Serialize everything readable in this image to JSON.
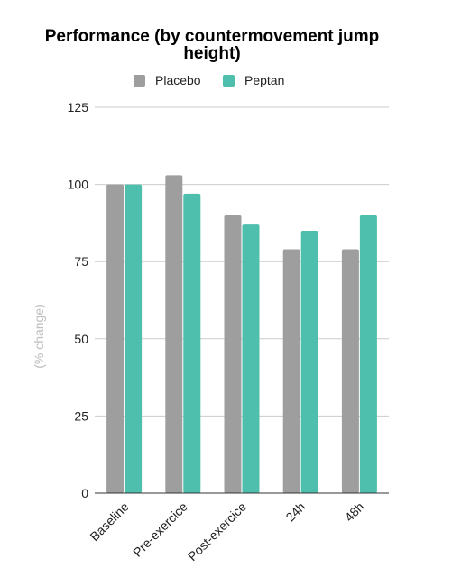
{
  "chart_data": {
    "type": "bar",
    "title": "Performance (by countermovement jump height)",
    "xlabel": "",
    "ylabel": "(% change)",
    "categories": [
      "Baseline",
      "Pre-exercice",
      "Post-exercice",
      "24h",
      "48h"
    ],
    "series": [
      {
        "name": "Placebo",
        "color": "#9e9e9e",
        "values": [
          100,
          103,
          90,
          79,
          79
        ]
      },
      {
        "name": "Peptan",
        "color": "#4dbfac",
        "values": [
          100,
          97,
          87,
          85,
          90
        ]
      }
    ],
    "ylim": [
      0,
      125
    ],
    "yticks": [
      0,
      25,
      50,
      75,
      100,
      125
    ],
    "grid": true,
    "legend_position": "top"
  }
}
